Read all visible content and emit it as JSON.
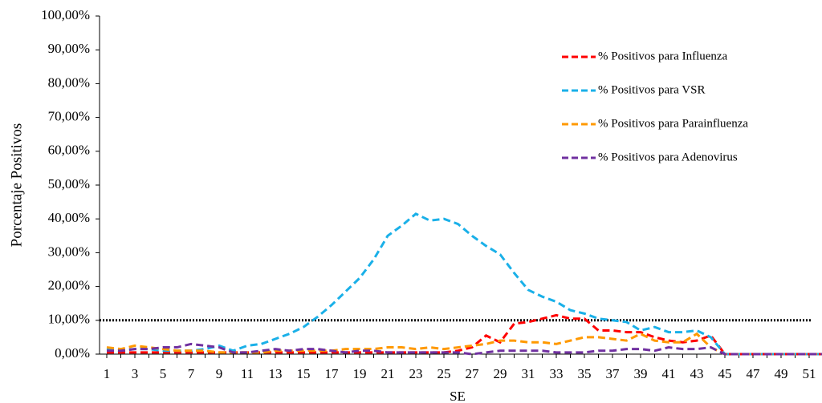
{
  "chart_data": {
    "type": "line",
    "y_label": "Porcentaje Positivos",
    "x_label": "SE",
    "categories": [
      "1",
      null,
      "3",
      null,
      "5",
      null,
      "7",
      null,
      "9",
      null,
      "11",
      null,
      "13",
      null,
      "15",
      null,
      "17",
      null,
      "19",
      null,
      "21",
      null,
      "23",
      null,
      "25",
      null,
      "27",
      null,
      "29",
      null,
      "31",
      null,
      "33",
      null,
      "35",
      null,
      "37",
      null,
      "39",
      null,
      "41",
      null,
      "43",
      null,
      "45",
      null,
      "47",
      null,
      "49",
      null,
      "51",
      null
    ],
    "ylim": [
      0,
      100
    ],
    "yticks": [
      {
        "value": 0,
        "label": "0,00%"
      },
      {
        "value": 10,
        "label": "10,00%"
      },
      {
        "value": 20,
        "label": "20,00%"
      },
      {
        "value": 30,
        "label": "30,00%"
      },
      {
        "value": 40,
        "label": "40,00%"
      },
      {
        "value": 50,
        "label": "50,00%"
      },
      {
        "value": 60,
        "label": "60,00%"
      },
      {
        "value": 70,
        "label": "70,00%"
      },
      {
        "value": 80,
        "label": "80,00%"
      },
      {
        "value": 90,
        "label": "90,00%"
      },
      {
        "value": 100,
        "label": "100,00%"
      }
    ],
    "threshold": 10,
    "threshold_color": "#000000",
    "legend": "upper right",
    "series": [
      {
        "name": "% Positivos para Influenza",
        "color": "#ff0000",
        "values": [
          0.5,
          0.5,
          0.5,
          0.5,
          0.5,
          0.5,
          0.5,
          0.5,
          0.5,
          0.5,
          0.5,
          0.5,
          0.5,
          0.5,
          0.5,
          0.5,
          0.5,
          0.5,
          0.5,
          0.5,
          0.5,
          0.5,
          0.5,
          0.5,
          0.5,
          1,
          2,
          5.5,
          3.5,
          9,
          9.5,
          10.5,
          11.5,
          10.5,
          10.5,
          7,
          7,
          6.5,
          6.5,
          5,
          4,
          3.5,
          4,
          5.5,
          0,
          0,
          0,
          0,
          0,
          0,
          0,
          0
        ]
      },
      {
        "name": "% Positivos para VSR",
        "color": "#1ab0e8",
        "values": [
          1.5,
          1,
          1.5,
          1.5,
          1,
          1,
          1,
          1.5,
          2.5,
          1,
          2.5,
          3,
          4.5,
          6,
          8,
          11,
          14.5,
          18.5,
          22.5,
          28,
          35,
          38,
          41.5,
          39.5,
          40,
          38.5,
          35,
          32,
          29.5,
          24,
          19,
          17,
          15.5,
          13,
          12,
          10.5,
          10,
          9.5,
          7,
          8,
          6.5,
          6.5,
          7,
          5,
          0,
          0,
          0,
          0,
          0,
          0,
          0,
          0
        ]
      },
      {
        "name": "% Positivos para Parainfluenza",
        "color": "#ff9900",
        "values": [
          2,
          1.5,
          2.5,
          2,
          1.5,
          1,
          1,
          1,
          0.5,
          0.5,
          0.5,
          0.5,
          1,
          1,
          1,
          1,
          1,
          1.5,
          1.5,
          1.5,
          2,
          2,
          1.5,
          2,
          1.5,
          2,
          2.5,
          3,
          4,
          4,
          3.5,
          3.5,
          3,
          4,
          5,
          5,
          4.5,
          4,
          6,
          4,
          3.5,
          3.5,
          6,
          2,
          0,
          0,
          0,
          0,
          0,
          0,
          0,
          0
        ]
      },
      {
        "name": "% Positivos para Adenovirus",
        "color": "#7030a0",
        "values": [
          1,
          1,
          1.5,
          1.5,
          2,
          2,
          3,
          2.5,
          2,
          0.5,
          0.5,
          1,
          1.5,
          1,
          1.5,
          1.5,
          1,
          0.5,
          1,
          1,
          0.5,
          0.5,
          0.5,
          0.5,
          0.5,
          0.5,
          0,
          0.5,
          1,
          1,
          1,
          1,
          0.5,
          0.5,
          0.5,
          1,
          1,
          1.5,
          1.5,
          1,
          2,
          1.5,
          1.5,
          2,
          0,
          0,
          0,
          0,
          0,
          0,
          0,
          0
        ]
      }
    ]
  }
}
